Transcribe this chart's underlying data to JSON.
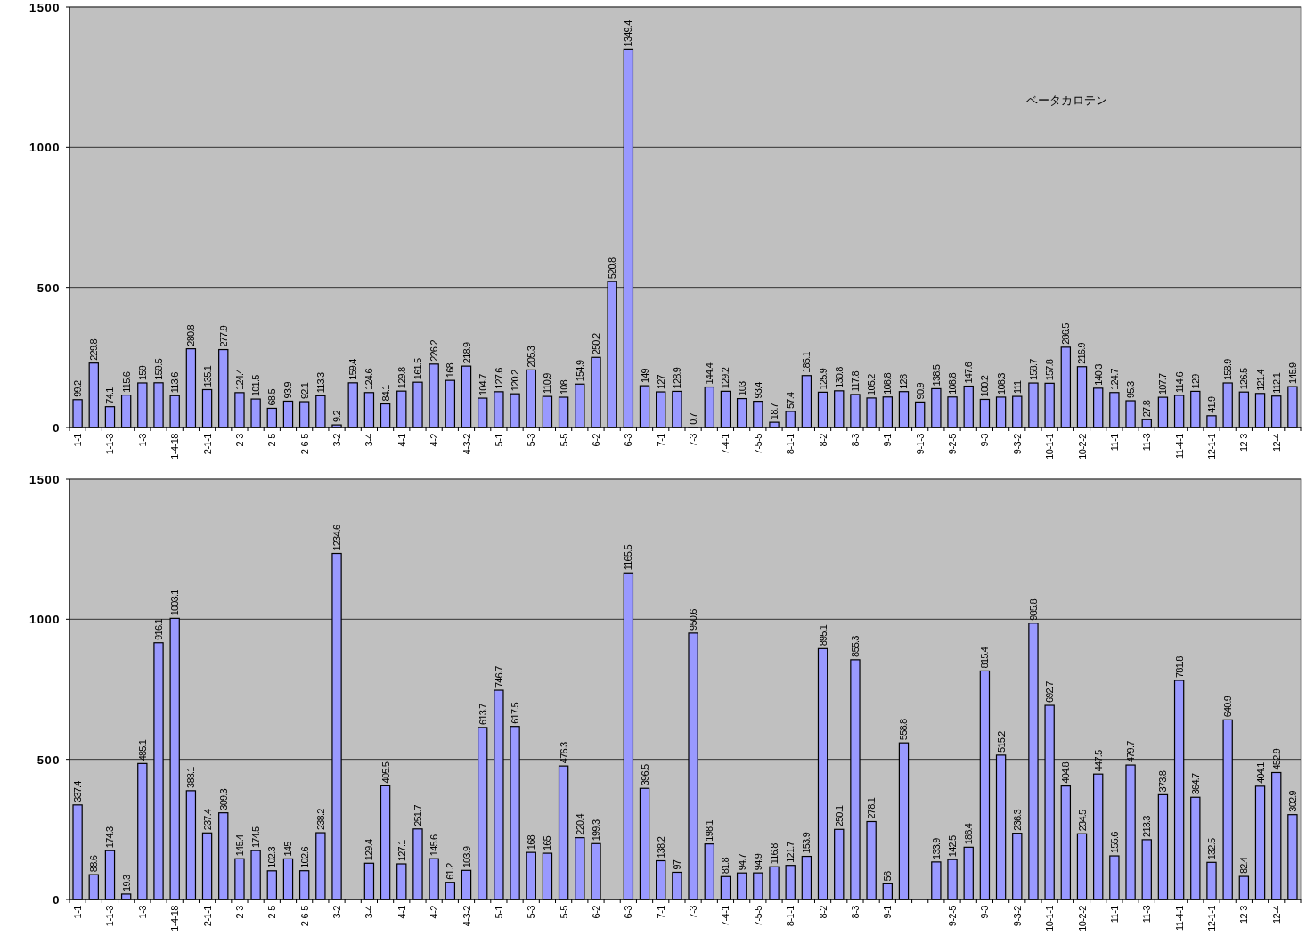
{
  "chart_data": [
    {
      "type": "bar",
      "annotations": [
        "ベータカロテン"
      ],
      "color": "#9999ff",
      "ylim": [
        0,
        1500
      ],
      "yticks": [
        0,
        500,
        1000,
        1500
      ],
      "grid": "y",
      "data_labels": true,
      "categories": [
        "1-1",
        null,
        "1-1-3",
        null,
        "1-3",
        null,
        "1-4-18",
        null,
        "2-1-1",
        null,
        "2-3",
        null,
        "2-5",
        null,
        "2-6-5",
        null,
        "3-2",
        null,
        "3-4",
        null,
        "4-1",
        null,
        "4-2",
        null,
        "4-3-2",
        null,
        "5-1",
        null,
        "5-3",
        null,
        "5-5",
        null,
        "6-2",
        null,
        "6-3",
        null,
        "7-1",
        null,
        "7-3",
        null,
        "7-4-1",
        null,
        "7-5-5",
        null,
        "8-1-1",
        null,
        "8-2",
        null,
        "8-3",
        null,
        "9-1",
        null,
        "9-1-3",
        null,
        "9-2-5",
        null,
        "9-3",
        null,
        "9-3-2",
        null,
        "10-1-1",
        null,
        "10-2-2",
        null,
        "11-1",
        null,
        "11-3",
        null,
        "11-4-1",
        null,
        "12-1-1",
        null,
        "12-3",
        null,
        "12-4",
        null
      ],
      "values": [
        99.2,
        229.8,
        74.1,
        115.6,
        159,
        159.5,
        113.6,
        280.8,
        135.1,
        277.9,
        124.4,
        101.5,
        68.5,
        93.9,
        92.1,
        113.3,
        9.2,
        159.4,
        124.6,
        84.1,
        129.8,
        161.5,
        226.2,
        168,
        218.9,
        104.7,
        127.6,
        120.2,
        205.3,
        110.9,
        108,
        154.9,
        250.2,
        520.8,
        1349.4,
        149,
        127,
        128.9,
        0.7,
        144.4,
        129.2,
        103,
        93.4,
        18.7,
        57.4,
        185.1,
        125.9,
        130.8,
        117.8,
        105.2,
        108.8,
        128,
        90.9,
        138.5,
        108.8,
        147.6,
        100.2,
        108.3,
        111,
        158.7,
        157.8,
        286.5,
        216.9,
        140.3,
        124.7,
        95.3,
        27.8,
        107.7,
        114.6,
        129,
        41.9,
        158.9,
        126.5,
        121.4,
        112.1,
        145.9
      ]
    },
    {
      "type": "bar",
      "color": "#9999ff",
      "ylim": [
        0,
        1500
      ],
      "yticks": [
        0,
        500,
        1000,
        1500
      ],
      "grid": "y",
      "data_labels": true,
      "categories": [
        "1-1",
        null,
        "1-1-3",
        null,
        "1-3",
        null,
        "1-4-18",
        null,
        "2-1-1",
        null,
        "2-3",
        null,
        "2-5",
        null,
        "2-6-5",
        null,
        "3-2",
        null,
        "3-4",
        null,
        "4-1",
        null,
        "4-2",
        null,
        "4-3-2",
        null,
        "5-1",
        null,
        "5-3",
        null,
        "5-5",
        null,
        "6-2",
        null,
        "6-3",
        null,
        "7-1",
        null,
        "7-3",
        null,
        "7-4-1",
        null,
        "7-5-5",
        null,
        "8-1-1",
        null,
        "8-2",
        null,
        "8-3",
        null,
        "9-1",
        null,
        null,
        null,
        "9-2-5",
        null,
        "9-3",
        null,
        "9-3-2",
        null,
        "10-1-1",
        null,
        "10-2-2",
        null,
        "11-1",
        null,
        "11-3",
        null,
        "11-4-1",
        null,
        "12-1-1",
        null,
        "12-3",
        null,
        "12-4",
        null
      ],
      "values": [
        337.4,
        88.6,
        174.3,
        19.3,
        485.1,
        916.1,
        1003.1,
        388.1,
        237.4,
        309.3,
        145.4,
        174.5,
        102.3,
        145,
        102.6,
        238.2,
        1234.6,
        null,
        129.4,
        405.5,
        127.1,
        251.7,
        145.6,
        61.2,
        103.9,
        613.7,
        746.7,
        617.5,
        168,
        165,
        476.3,
        220.4,
        199.3,
        null,
        1165.5,
        396.5,
        138.2,
        97,
        950.6,
        198.1,
        81.8,
        94.7,
        94.9,
        116.8,
        121.7,
        153.9,
        895.1,
        250.1,
        855.3,
        278.1,
        56,
        558.8,
        null,
        133.9,
        142.5,
        186.4,
        815.4,
        515.2,
        236.3,
        985.8,
        692.7,
        404.8,
        234.5,
        447.5,
        155.6,
        479.7,
        213.3,
        373.8,
        781.8,
        364.7,
        132.5,
        640.9,
        82.4,
        404.1,
        452.9,
        302.9
      ]
    }
  ]
}
